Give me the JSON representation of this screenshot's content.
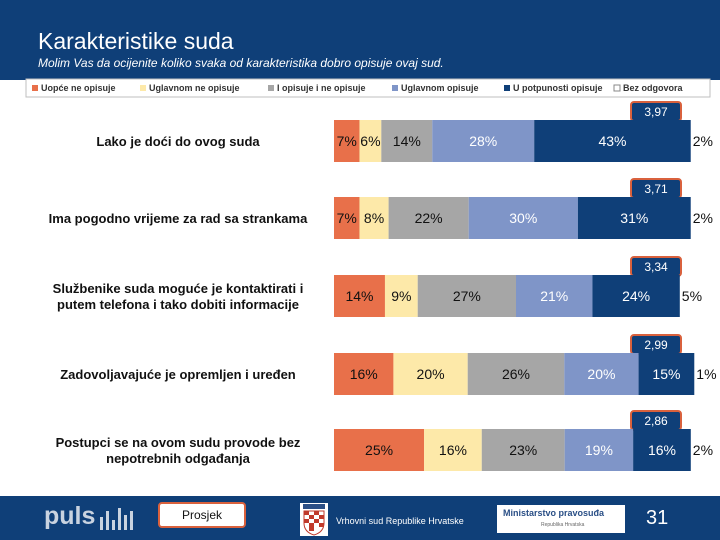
{
  "title": "Karakteristike suda",
  "subtitle": "Molim Vas da ocijenite koliko svaka od karakteristika dobro opisuje ovaj sud.",
  "chart_data": {
    "type": "bar",
    "orientation": "horizontal-stacked-percent",
    "series": [
      {
        "name": "Uopće ne opisuje",
        "color": "#e8704a",
        "values": [
          7,
          7,
          14,
          16,
          25
        ]
      },
      {
        "name": "Uglavnom ne opisuje",
        "color": "#fde9a9",
        "values": [
          6,
          8,
          9,
          20,
          16
        ]
      },
      {
        "name": "I opisuje i ne opisuje",
        "color": "#a6a6a6",
        "values": [
          14,
          22,
          27,
          26,
          23
        ]
      },
      {
        "name": "Uglavnom opisuje",
        "color": "#7f95c8",
        "values": [
          28,
          30,
          21,
          20,
          19
        ]
      },
      {
        "name": "U potpunosti opisuje",
        "color": "#0f3f78",
        "values": [
          43,
          31,
          24,
          15,
          16
        ]
      },
      {
        "name": "Bez odgovora",
        "color": "#ffffff",
        "values": [
          2,
          2,
          5,
          1,
          2
        ]
      }
    ],
    "categories": [
      [
        "Lako je doći do ovog suda"
      ],
      [
        "Ima pogodno vrijeme za rad sa strankama"
      ],
      [
        "Službenike suda moguće je kontaktirati i",
        "putem telefona i tako dobiti informacije"
      ],
      [
        "Zadovoljavajuće je opremljen i uređen"
      ],
      [
        "Postupci se na ovom sudu provode bez",
        "nepotrebnih odgađanja"
      ]
    ],
    "averages": [
      "3,97",
      "3,71",
      "3,34",
      "2,99",
      "2,86"
    ],
    "label_suffix": "%"
  },
  "footer": {
    "logo": "puls",
    "average_label": "Prosjek",
    "supreme_court": "Vrhovni sud Republike Hrvatske",
    "ministry": "Ministarstvo pravosuđa",
    "ministry_sub": "Republika Hrvatska",
    "page_number": "31"
  }
}
